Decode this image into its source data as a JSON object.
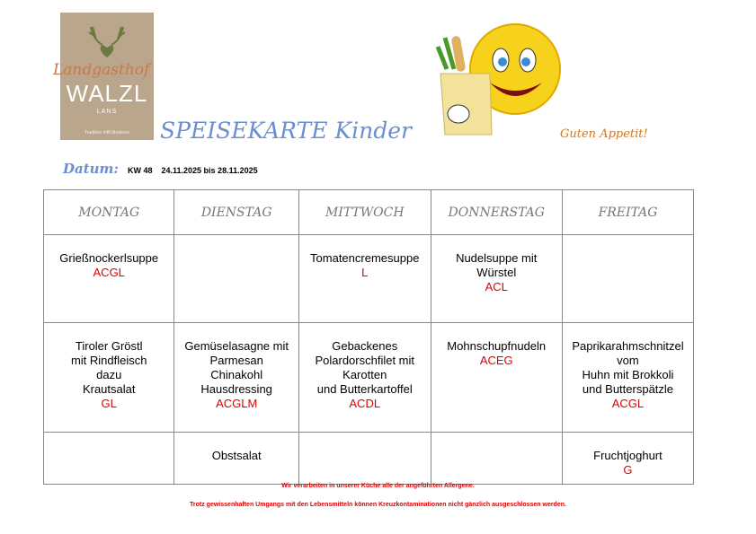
{
  "logo": {
    "script": "Landgasthof",
    "name": "WALZL",
    "place": "LANS",
    "tagline": "Tradition trifft Moderne"
  },
  "title": "SPEISEKARTE Kinder",
  "greeting": "Guten Appetit!",
  "datum": {
    "label": "Datum:",
    "value": "KW 48    24.11.2025 bis 28.11.2025"
  },
  "days": [
    "MONTAG",
    "DIENSTAG",
    "MITTWOCH",
    "DONNERSTAG",
    "FREITAG"
  ],
  "rows": [
    [
      {
        "dish": [
          "Grießnockerlsuppe"
        ],
        "allergens": "ACGL"
      },
      {
        "dish": [],
        "allergens": ""
      },
      {
        "dish": [
          "Tomatencremesuppe"
        ],
        "allergens": "L"
      },
      {
        "dish": [
          "Nudelsuppe mit",
          "Würstel"
        ],
        "allergens": "ACL"
      },
      {
        "dish": [],
        "allergens": ""
      }
    ],
    [
      {
        "dish": [
          "Tiroler Gröstl",
          "mit Rindfleisch",
          "dazu",
          "Krautsalat"
        ],
        "allergens": "GL"
      },
      {
        "dish": [
          "Gemüselasagne mit",
          "Parmesan",
          "Chinakohl",
          "Hausdressing"
        ],
        "allergens": "ACGLM"
      },
      {
        "dish": [
          "Gebackenes",
          "Polardorschfilet mit",
          "Karotten",
          "und Butterkartoffel"
        ],
        "allergens": "ACDL"
      },
      {
        "dish": [
          "Mohnschupfnudeln"
        ],
        "allergens": "ACEG"
      },
      {
        "dish": [
          "Paprikarahmschnitzel",
          "vom",
          "Huhn mit Brokkoli",
          "und Butterspätzle"
        ],
        "allergens": "ACGL"
      }
    ],
    [
      {
        "dish": [],
        "allergens": ""
      },
      {
        "dish": [
          "Obstsalat"
        ],
        "allergens": ""
      },
      {
        "dish": [],
        "allergens": ""
      },
      {
        "dish": [],
        "allergens": ""
      },
      {
        "dish": [
          "Fruchtjoghurt"
        ],
        "allergens": "G"
      }
    ]
  ],
  "footer": [
    "Wir verarbeiten in unserer Küche alle der angeführten Allergene.",
    "Trotz gewissenhaften Umgangs mit den Lebensmitteln können Kreuzkontaminationen nicht gänzlich ausgeschlossen werden."
  ]
}
